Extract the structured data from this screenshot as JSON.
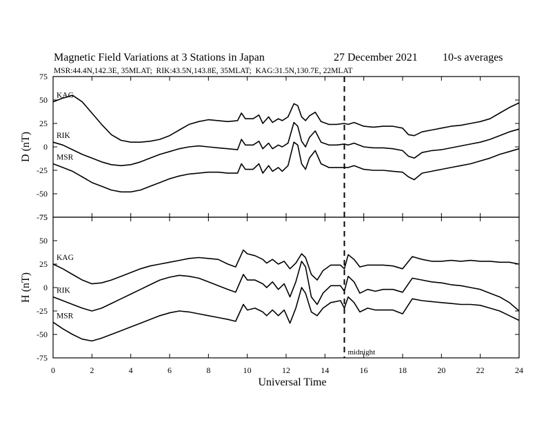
{
  "chart_data": {
    "type": "line",
    "title": "Magnetic Field Variations at 3 Stations in Japan",
    "date": "27 December 2021",
    "averaging": "10-s averages",
    "subtitle": "MSR:44.4N,142.3E, 35MLAT;  RIK:43.5N,143.8E, 35MLAT;  KAG:31.5N,130.7E, 22MLAT",
    "xlabel": "Universal Time",
    "xlim": [
      0,
      24
    ],
    "xticks": [
      "0",
      "2",
      "4",
      "6",
      "8",
      "10",
      "12",
      "14",
      "16",
      "18",
      "20",
      "22",
      "24"
    ],
    "midnight_line": {
      "x": 15,
      "label": "midnight"
    },
    "panels": [
      {
        "ylabel": "D (nT)",
        "ylim": [
          -75,
          75
        ],
        "yticks": [
          "75",
          "50",
          "25",
          "0",
          "-25",
          "-50",
          "-75"
        ],
        "series": [
          {
            "name": "KAG",
            "x": [
              0,
              0.5,
              1,
              1.5,
              2,
              2.5,
              3,
              3.5,
              4,
              4.5,
              5,
              5.5,
              6,
              6.5,
              7,
              7.5,
              8,
              8.5,
              9,
              9.5,
              9.7,
              9.9,
              10.3,
              10.6,
              10.8,
              11.1,
              11.3,
              11.6,
              11.8,
              12.1,
              12.4,
              12.6,
              12.8,
              13.0,
              13.2,
              13.5,
              13.8,
              14.2,
              14.6,
              15.0,
              15.2,
              15.5,
              16,
              16.5,
              17,
              17.5,
              18,
              18.3,
              18.6,
              19,
              19.5,
              20,
              20.5,
              21,
              21.5,
              22,
              22.5,
              23,
              23.5,
              24
            ],
            "values": [
              48,
              52,
              55,
              48,
              36,
              24,
              13,
              7,
              5,
              5,
              6,
              8,
              12,
              18,
              24,
              27,
              29,
              28,
              27,
              28,
              36,
              30,
              30,
              34,
              25,
              32,
              26,
              30,
              28,
              32,
              46,
              44,
              32,
              28,
              33,
              37,
              27,
              24,
              24,
              25,
              24,
              26,
              22,
              21,
              22,
              22,
              20,
              13,
              12,
              16,
              18,
              20,
              22,
              23,
              25,
              27,
              30,
              36,
              42,
              47
            ]
          },
          {
            "name": "RIK",
            "x": [
              0,
              0.5,
              1,
              1.5,
              2,
              2.5,
              3,
              3.5,
              4,
              4.5,
              5,
              5.5,
              6,
              6.5,
              7,
              7.5,
              8,
              8.5,
              9,
              9.5,
              9.7,
              9.9,
              10.3,
              10.6,
              10.8,
              11.1,
              11.3,
              11.6,
              11.8,
              12.1,
              12.4,
              12.6,
              12.8,
              13.0,
              13.2,
              13.5,
              13.8,
              14.2,
              14.6,
              15.0,
              15.2,
              15.5,
              16,
              16.5,
              17,
              17.5,
              18,
              18.3,
              18.6,
              19,
              19.5,
              20,
              20.5,
              21,
              21.5,
              22,
              22.5,
              23,
              23.5,
              24
            ],
            "values": [
              5,
              2,
              -3,
              -8,
              -12,
              -16,
              -19,
              -20,
              -19,
              -16,
              -12,
              -8,
              -5,
              -2,
              0,
              1,
              0,
              -1,
              -2,
              -3,
              8,
              2,
              2,
              6,
              -2,
              4,
              -2,
              2,
              0,
              4,
              26,
              22,
              6,
              0,
              10,
              17,
              5,
              2,
              2,
              3,
              2,
              4,
              0,
              -1,
              -1,
              -2,
              -4,
              -10,
              -12,
              -6,
              -4,
              -3,
              -1,
              1,
              3,
              5,
              8,
              12,
              16,
              19
            ]
          },
          {
            "name": "MSR",
            "x": [
              0,
              0.5,
              1,
              1.5,
              2,
              2.5,
              3,
              3.5,
              4,
              4.5,
              5,
              5.5,
              6,
              6.5,
              7,
              7.5,
              8,
              8.5,
              9,
              9.5,
              9.7,
              9.9,
              10.3,
              10.6,
              10.8,
              11.1,
              11.3,
              11.6,
              11.8,
              12.1,
              12.4,
              12.6,
              12.8,
              13.0,
              13.2,
              13.5,
              13.8,
              14.2,
              14.6,
              15.0,
              15.2,
              15.5,
              16,
              16.5,
              17,
              17.5,
              18,
              18.3,
              18.6,
              19,
              19.5,
              20,
              20.5,
              21,
              21.5,
              22,
              22.5,
              23,
              23.5,
              24
            ],
            "values": [
              -18,
              -22,
              -26,
              -32,
              -38,
              -42,
              -46,
              -48,
              -48,
              -46,
              -42,
              -38,
              -34,
              -31,
              -29,
              -28,
              -27,
              -27,
              -28,
              -28,
              -18,
              -24,
              -24,
              -18,
              -28,
              -20,
              -26,
              -22,
              -26,
              -20,
              5,
              2,
              -18,
              -24,
              -12,
              -4,
              -18,
              -22,
              -22,
              -22,
              -22,
              -20,
              -24,
              -25,
              -25,
              -26,
              -27,
              -32,
              -35,
              -28,
              -26,
              -24,
              -22,
              -20,
              -18,
              -15,
              -12,
              -8,
              -5,
              -2
            ]
          }
        ]
      },
      {
        "ylabel": "H (nT)",
        "ylim": [
          -75,
          75
        ],
        "yticks": [
          "75",
          "50",
          "25",
          "0",
          "-25",
          "-50",
          "-75"
        ],
        "series": [
          {
            "name": "KAG",
            "x": [
              0,
              0.5,
              1,
              1.5,
              2,
              2.5,
              3,
              3.5,
              4,
              4.5,
              5,
              5.5,
              6,
              6.5,
              7,
              7.5,
              8,
              8.5,
              9,
              9.4,
              9.8,
              10.0,
              10.4,
              10.8,
              11.0,
              11.3,
              11.6,
              11.9,
              12.2,
              12.5,
              12.8,
              13.0,
              13.3,
              13.6,
              13.9,
              14.3,
              14.8,
              15.0,
              15.2,
              15.5,
              15.8,
              16.2,
              16.6,
              17,
              17.5,
              18,
              18.5,
              19,
              19.5,
              20,
              20.5,
              21,
              21.5,
              22,
              22.5,
              23,
              23.5,
              24
            ],
            "values": [
              25,
              20,
              14,
              8,
              4,
              5,
              8,
              12,
              16,
              20,
              23,
              25,
              27,
              29,
              31,
              32,
              31,
              30,
              25,
              22,
              40,
              36,
              34,
              30,
              26,
              30,
              25,
              28,
              20,
              26,
              36,
              32,
              14,
              8,
              18,
              24,
              24,
              20,
              35,
              30,
              22,
              24,
              24,
              24,
              23,
              20,
              33,
              30,
              28,
              28,
              29,
              28,
              29,
              28,
              28,
              27,
              27,
              25
            ]
          },
          {
            "name": "RIK",
            "x": [
              0,
              0.5,
              1,
              1.5,
              2,
              2.5,
              3,
              3.5,
              4,
              4.5,
              5,
              5.5,
              6,
              6.5,
              7,
              7.5,
              8,
              8.5,
              9,
              9.4,
              9.8,
              10.0,
              10.4,
              10.8,
              11.0,
              11.3,
              11.6,
              11.9,
              12.2,
              12.5,
              12.8,
              13.0,
              13.3,
              13.6,
              13.9,
              14.3,
              14.8,
              15.0,
              15.2,
              15.5,
              15.8,
              16.2,
              16.6,
              17,
              17.5,
              18,
              18.5,
              19,
              19.5,
              20,
              20.5,
              21,
              21.5,
              22,
              22.5,
              23,
              23.5,
              24
            ],
            "values": [
              -10,
              -14,
              -18,
              -22,
              -25,
              -22,
              -17,
              -12,
              -7,
              -2,
              3,
              8,
              11,
              13,
              12,
              10,
              6,
              2,
              -2,
              -5,
              14,
              8,
              8,
              4,
              0,
              6,
              -2,
              4,
              -10,
              6,
              28,
              22,
              -10,
              -18,
              -6,
              2,
              2,
              -4,
              12,
              6,
              -6,
              -2,
              -4,
              -2,
              -2,
              -5,
              10,
              8,
              6,
              5,
              3,
              2,
              0,
              -2,
              -6,
              -10,
              -16,
              -25
            ]
          },
          {
            "name": "MSR",
            "x": [
              0,
              0.5,
              1,
              1.5,
              2,
              2.5,
              3,
              3.5,
              4,
              4.5,
              5,
              5.5,
              6,
              6.5,
              7,
              7.5,
              8,
              8.5,
              9,
              9.4,
              9.8,
              10.0,
              10.4,
              10.8,
              11.0,
              11.3,
              11.6,
              11.9,
              12.2,
              12.5,
              12.8,
              13.0,
              13.3,
              13.6,
              13.9,
              14.3,
              14.8,
              15.0,
              15.2,
              15.5,
              15.8,
              16.2,
              16.6,
              17,
              17.5,
              18,
              18.5,
              19,
              19.5,
              20,
              20.5,
              21,
              21.5,
              22,
              22.5,
              23,
              23.5,
              24
            ],
            "values": [
              -37,
              -44,
              -50,
              -55,
              -57,
              -54,
              -50,
              -46,
              -42,
              -38,
              -34,
              -30,
              -27,
              -25,
              -26,
              -28,
              -30,
              -32,
              -34,
              -36,
              -18,
              -24,
              -22,
              -26,
              -30,
              -24,
              -30,
              -24,
              -38,
              -22,
              0,
              -6,
              -26,
              -30,
              -22,
              -16,
              -14,
              -22,
              -10,
              -16,
              -26,
              -22,
              -24,
              -24,
              -24,
              -28,
              -12,
              -14,
              -15,
              -16,
              -17,
              -18,
              -18,
              -19,
              -22,
              -25,
              -30,
              -35
            ]
          }
        ]
      }
    ]
  }
}
